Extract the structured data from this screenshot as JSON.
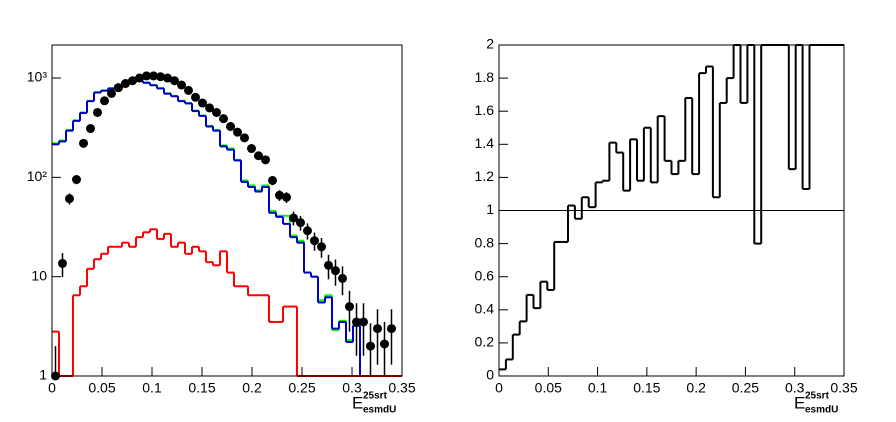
{
  "chart_data": [
    {
      "type": "histogram",
      "log_y": true,
      "xlabel": {
        "main": "E",
        "sup": "25srt",
        "sub": "esmdU"
      },
      "bins": [
        0,
        0.007,
        0.014,
        0.021,
        0.028,
        0.035,
        0.042,
        0.049,
        0.056,
        0.063,
        0.07,
        0.077,
        0.084,
        0.091,
        0.098,
        0.105,
        0.112,
        0.119,
        0.126,
        0.133,
        0.14,
        0.147,
        0.154,
        0.161,
        0.168,
        0.175,
        0.182,
        0.189,
        0.196,
        0.203,
        0.21,
        0.217,
        0.224,
        0.231,
        0.238,
        0.245,
        0.252,
        0.259,
        0.266,
        0.273,
        0.28,
        0.287,
        0.294,
        0.301,
        0.308,
        0.315,
        0.322,
        0.329,
        0.336,
        0.343,
        0.35
      ],
      "xlim": [
        0,
        0.35
      ],
      "xticks": [
        0,
        0.05,
        0.1,
        0.15,
        0.2,
        0.25,
        0.3,
        0.35
      ],
      "ylim": [
        1,
        2150
      ],
      "yticks": [
        1,
        10,
        {
          "value": 100,
          "label": "10²"
        },
        {
          "value": 1000,
          "label": "10³"
        }
      ],
      "series": [
        {
          "color": "#00ff00",
          "style": "step",
          "values": [
            220,
            235,
            300,
            375,
            450,
            590,
            720,
            750,
            790,
            850,
            900,
            940,
            940,
            900,
            850,
            790,
            700,
            660,
            590,
            560,
            470,
            420,
            330,
            300,
            210,
            195,
            150,
            93,
            83,
            74,
            83,
            46,
            41,
            41,
            26,
            23,
            11,
            10,
            5.8,
            6.5,
            2.9,
            3.6,
            2.3,
            3.3,
            1,
            1,
            1,
            1,
            1,
            1
          ]
        },
        {
          "color": "#0000cc",
          "style": "step",
          "values": [
            215,
            230,
            295,
            370,
            445,
            585,
            715,
            745,
            785,
            845,
            895,
            935,
            935,
            895,
            845,
            785,
            695,
            655,
            585,
            555,
            465,
            415,
            325,
            295,
            205,
            190,
            148,
            90,
            80,
            72,
            80,
            44,
            40,
            34,
            25,
            22,
            11,
            10,
            5.5,
            6.2,
            3,
            3.5,
            2.2,
            3.2,
            1,
            1,
            1,
            1,
            1,
            1
          ]
        },
        {
          "color": "#ff0000",
          "style": "step",
          "values": [
            2.8,
            1,
            1,
            6.5,
            8,
            12,
            15,
            17,
            20,
            20,
            22,
            20,
            25,
            28,
            30,
            24,
            27,
            20,
            22,
            17,
            20,
            18,
            14,
            13,
            18,
            11,
            8,
            8,
            6.5,
            6.5,
            6.5,
            3.5,
            3.5,
            5,
            5,
            1,
            1,
            1,
            1,
            1,
            1,
            1,
            1,
            1,
            1,
            1,
            1,
            1,
            1,
            1
          ]
        },
        {
          "color": "#000000",
          "style": "points",
          "values": [
            1,
            13.6,
            61,
            95,
            220,
            310,
            450,
            590,
            700,
            800,
            880,
            940,
            1000,
            1050,
            1050,
            1030,
            1000,
            940,
            850,
            750,
            640,
            560,
            500,
            450,
            390,
            325,
            285,
            250,
            195,
            165,
            150,
            93,
            66,
            63,
            39,
            35,
            29,
            23,
            20,
            13,
            11.5,
            9.6,
            5,
            3.5,
            3.5,
            2,
            3,
            2.1,
            3,
            null
          ],
          "errors": [
            1,
            3.7,
            7.8,
            9.7,
            14.8,
            17.6,
            21.2,
            24.3,
            26.5,
            28.3,
            29.7,
            30.7,
            31.6,
            32.4,
            32.4,
            32.1,
            31.6,
            30.7,
            29.2,
            27.4,
            25.3,
            23.7,
            22.4,
            21.2,
            19.7,
            18,
            16.9,
            15.8,
            14,
            12.8,
            12.2,
            9.6,
            8.1,
            7.9,
            6.2,
            5.9,
            5.4,
            4.8,
            4.5,
            3.6,
            3.4,
            3.1,
            2.2,
            1.9,
            1.9,
            1.4,
            1.7,
            1.4,
            1.7,
            null
          ]
        }
      ]
    },
    {
      "type": "histogram",
      "xlabel": {
        "main": "E",
        "sup": "25srt",
        "sub": "esmdU"
      },
      "bins": [
        0,
        0.007,
        0.014,
        0.021,
        0.028,
        0.035,
        0.042,
        0.049,
        0.056,
        0.063,
        0.07,
        0.077,
        0.084,
        0.091,
        0.098,
        0.105,
        0.112,
        0.119,
        0.126,
        0.133,
        0.14,
        0.147,
        0.154,
        0.161,
        0.168,
        0.175,
        0.182,
        0.189,
        0.196,
        0.203,
        0.21,
        0.217,
        0.224,
        0.231,
        0.238,
        0.245,
        0.252,
        0.259,
        0.266,
        0.273,
        0.28,
        0.287,
        0.294,
        0.301,
        0.308,
        0.315,
        0.322,
        0.329,
        0.336,
        0.343,
        0.35
      ],
      "xlim": [
        0,
        0.35
      ],
      "xticks": [
        0,
        0.05,
        0.1,
        0.15,
        0.2,
        0.25,
        0.3,
        0.35
      ],
      "ylim": [
        0,
        2
      ],
      "yticks": [
        0,
        0.2,
        0.4,
        0.6,
        0.8,
        1,
        1.2,
        1.4,
        1.6,
        1.8,
        2
      ],
      "reference_line": 1,
      "series": [
        {
          "color": "#000000",
          "style": "step",
          "values": [
            0.04,
            0.1,
            0.25,
            0.33,
            0.49,
            0.41,
            0.57,
            0.52,
            0.81,
            0.81,
            1.03,
            0.95,
            1.08,
            1.02,
            1.17,
            1.18,
            1.41,
            1.35,
            1.12,
            1.43,
            1.18,
            1.5,
            1.17,
            1.57,
            1.3,
            1.22,
            1.3,
            1.68,
            1.22,
            1.83,
            1.87,
            1.08,
            1.65,
            1.8,
            2,
            1.65,
            2,
            0.8,
            2,
            2,
            2,
            2,
            1.25,
            2,
            1.13,
            2,
            2,
            2,
            2,
            2
          ]
        }
      ]
    }
  ]
}
